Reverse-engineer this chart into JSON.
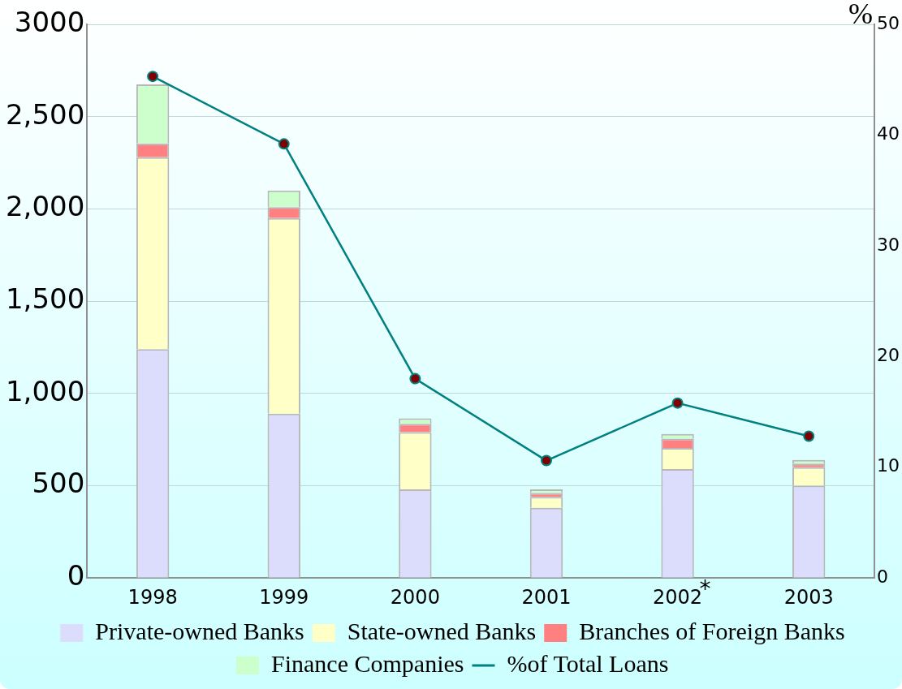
{
  "chart_data": {
    "type": "bar",
    "stacked": true,
    "categories": [
      "1998",
      "1999",
      "2000",
      "2001",
      "2002",
      "2003"
    ],
    "series": [
      {
        "name": "Private-owned Banks",
        "color": "#dcdcfc",
        "values": [
          1240,
          890,
          480,
          380,
          590,
          500
        ]
      },
      {
        "name": "State-owned Banks",
        "color": "#ffffc8",
        "values": [
          1040,
          1060,
          310,
          60,
          115,
          100
        ]
      },
      {
        "name": "Branches of Foreign Banks",
        "color": "#ff8080",
        "values": [
          75,
          60,
          45,
          20,
          50,
          20
        ]
      },
      {
        "name": "Finance Companies",
        "color": "#ccffcc",
        "values": [
          320,
          90,
          30,
          20,
          25,
          20
        ]
      },
      {
        "name": "%of Total Loans",
        "type": "line",
        "axis": "y2",
        "color": "#008080",
        "marker": "circle",
        "values": [
          45.3,
          39.2,
          18.0,
          10.6,
          15.8,
          12.8
        ]
      }
    ],
    "ylim": [
      0,
      3000
    ],
    "yticks": [
      0,
      {
        "value": 500,
        "label": "500"
      },
      {
        "value": 1000,
        "label": "1,000"
      },
      {
        "value": 1500,
        "label": "1,500"
      },
      {
        "value": 2000,
        "label": "2,000"
      },
      {
        "value": 2500,
        "label": "2,500"
      },
      {
        "value": 3000,
        "label": "3000"
      }
    ],
    "y2lim": [
      0,
      50
    ],
    "y2ticks": [
      0,
      10,
      20,
      30,
      40,
      50
    ],
    "y2label": "%",
    "grid": "y",
    "legend": "bottom",
    "annotations": [
      "*"
    ]
  }
}
